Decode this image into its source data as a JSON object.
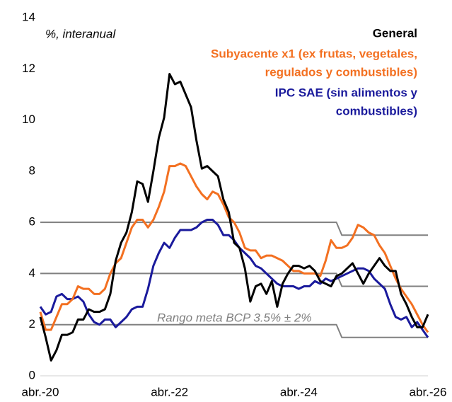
{
  "chart_data": {
    "type": "line",
    "annotations": [
      "%, interanual",
      "Rango meta BCP 3.5% ± 2%"
    ],
    "categories": [
      "abr.-20",
      null,
      null,
      null,
      null,
      null,
      null,
      null,
      null,
      null,
      null,
      null,
      null,
      null,
      null,
      null,
      null,
      null,
      null,
      null,
      null,
      null,
      null,
      null,
      "abr.-22",
      null,
      null,
      null,
      null,
      null,
      null,
      null,
      null,
      null,
      null,
      null,
      null,
      null,
      null,
      null,
      null,
      null,
      null,
      null,
      null,
      null,
      null,
      null,
      "abr.-24",
      null,
      null,
      null,
      null,
      null,
      null,
      null,
      null,
      null,
      null,
      null,
      null,
      null,
      null,
      null,
      null,
      null,
      null,
      null,
      null,
      null,
      null,
      null,
      "abr.-26"
    ],
    "ylim": [
      0,
      14
    ],
    "yticks": [
      0,
      2,
      4,
      6,
      8,
      10,
      12,
      14
    ],
    "series": [
      {
        "color": "#808080",
        "values": [
          6,
          6,
          6,
          6,
          6,
          6,
          6,
          6,
          6,
          6,
          6,
          6,
          6,
          6,
          6,
          6,
          6,
          6,
          6,
          6,
          6,
          6,
          6,
          6,
          6,
          6,
          6,
          6,
          6,
          6,
          6,
          6,
          6,
          6,
          6,
          6,
          6,
          6,
          6,
          6,
          6,
          6,
          6,
          6,
          6,
          6,
          6,
          6,
          6,
          6,
          6,
          6,
          6,
          6,
          6,
          6,
          5.5,
          5.5,
          5.5,
          5.5,
          5.5,
          5.5,
          5.5,
          5.5,
          5.5,
          5.5,
          5.5,
          5.5,
          5.5,
          5.5,
          5.5,
          5.5,
          5.5
        ]
      },
      {
        "color": "#808080",
        "values": [
          4,
          4,
          4,
          4,
          4,
          4,
          4,
          4,
          4,
          4,
          4,
          4,
          4,
          4,
          4,
          4,
          4,
          4,
          4,
          4,
          4,
          4,
          4,
          4,
          4,
          4,
          4,
          4,
          4,
          4,
          4,
          4,
          4,
          4,
          4,
          4,
          4,
          4,
          4,
          4,
          4,
          4,
          4,
          4,
          4,
          4,
          4,
          4,
          4,
          4,
          4,
          4,
          4,
          4,
          4,
          4,
          3.5,
          3.5,
          3.5,
          3.5,
          3.5,
          3.5,
          3.5,
          3.5,
          3.5,
          3.5,
          3.5,
          3.5,
          3.5,
          3.5,
          3.5,
          3.5,
          3.5
        ]
      },
      {
        "color": "#808080",
        "values": [
          2,
          2,
          2,
          2,
          2,
          2,
          2,
          2,
          2,
          2,
          2,
          2,
          2,
          2,
          2,
          2,
          2,
          2,
          2,
          2,
          2,
          2,
          2,
          2,
          2,
          2,
          2,
          2,
          2,
          2,
          2,
          2,
          2,
          2,
          2,
          2,
          2,
          2,
          2,
          2,
          2,
          2,
          2,
          2,
          2,
          2,
          2,
          2,
          2,
          2,
          2,
          2,
          2,
          2,
          2,
          2,
          1.5,
          1.5,
          1.5,
          1.5,
          1.5,
          1.5,
          1.5,
          1.5,
          1.5,
          1.5,
          1.5,
          1.5,
          1.5,
          1.5,
          1.5,
          1.5,
          1.5
        ]
      },
      {
        "name": [
          "IPC SAE (sin alimentos y",
          "combustibles)"
        ],
        "color": "#1a1a9c",
        "values": [
          2.7,
          2.4,
          2.5,
          3.1,
          3.2,
          3.0,
          3.0,
          3.1,
          2.9,
          2.4,
          2.1,
          2.0,
          2.2,
          2.2,
          1.9,
          2.1,
          2.3,
          2.6,
          2.7,
          2.7,
          3.4,
          4.3,
          4.8,
          5.2,
          5.0,
          5.4,
          5.7,
          5.7,
          5.7,
          5.8,
          6.0,
          6.1,
          6.1,
          5.9,
          5.5,
          5.5,
          5.3,
          5.0,
          4.8,
          4.6,
          4.3,
          4.2,
          4.0,
          3.8,
          3.6,
          3.5,
          3.5,
          3.5,
          3.4,
          3.5,
          3.5,
          3.7,
          3.6,
          3.8,
          3.7,
          3.8,
          3.9,
          4.0,
          4.1,
          4.2,
          4.2,
          4.1,
          3.8,
          3.6,
          3.4,
          2.8,
          2.3,
          2.2,
          2.3,
          1.9,
          2.1,
          1.8,
          1.5
        ]
      },
      {
        "name": [
          "Subyacente x1 (ex frutas, vegetales,",
          "regulados y combustibles)"
        ],
        "color": "#f37021",
        "values": [
          2.5,
          1.8,
          1.8,
          2.3,
          2.8,
          2.8,
          3.0,
          3.5,
          3.4,
          3.4,
          3.2,
          3.2,
          3.4,
          4.0,
          4.4,
          4.6,
          5.2,
          5.8,
          6.1,
          6.1,
          5.8,
          6.1,
          6.6,
          7.2,
          8.2,
          8.2,
          8.3,
          8.2,
          7.8,
          7.4,
          7.1,
          6.9,
          7.2,
          7.1,
          6.7,
          6.2,
          6.0,
          5.6,
          5.0,
          4.9,
          4.9,
          4.6,
          4.7,
          4.7,
          4.6,
          4.5,
          4.3,
          4.1,
          4.1,
          4.0,
          4.0,
          4.0,
          3.9,
          4.5,
          5.3,
          5.0,
          5.0,
          5.1,
          5.4,
          5.9,
          5.8,
          5.6,
          5.5,
          5.1,
          4.8,
          4.3,
          3.8,
          3.4,
          3.1,
          2.8,
          2.4,
          2.0,
          1.7
        ]
      },
      {
        "name": [
          "General"
        ],
        "color": "#000000",
        "values": [
          2.3,
          1.5,
          0.6,
          1.0,
          1.6,
          1.6,
          1.7,
          2.2,
          2.2,
          2.6,
          2.5,
          2.5,
          2.6,
          3.2,
          4.5,
          5.2,
          5.6,
          6.4,
          7.6,
          7.5,
          6.8,
          8.0,
          9.3,
          10.1,
          11.8,
          11.4,
          11.5,
          11.0,
          10.5,
          9.2,
          8.1,
          8.2,
          8.0,
          7.8,
          6.9,
          6.4,
          5.2,
          5.0,
          4.2,
          2.9,
          3.5,
          3.6,
          3.2,
          3.7,
          2.7,
          3.6,
          4.0,
          4.3,
          4.3,
          4.2,
          4.3,
          4.1,
          3.7,
          3.6,
          3.5,
          3.9,
          4.0,
          4.2,
          4.4,
          4.0,
          3.6,
          4.0,
          4.3,
          4.6,
          4.3,
          4.1,
          4.1,
          3.2,
          2.8,
          2.3,
          1.9,
          1.9,
          2.4
        ]
      }
    ]
  }
}
